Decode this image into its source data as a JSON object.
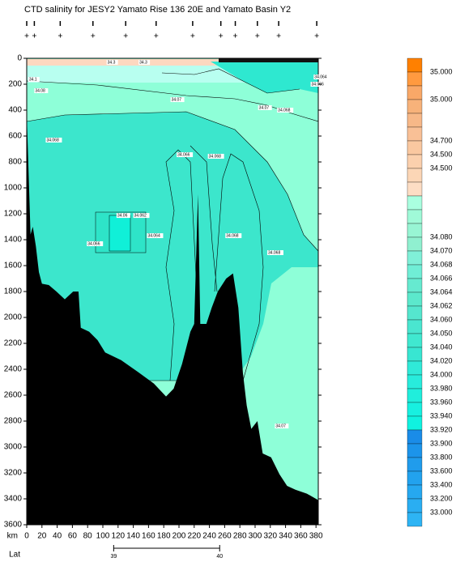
{
  "chart_data": {
    "type": "section",
    "title": "CTD salinity for JESY2 Yamato Rise 136 20E and Yamato Basin Y2",
    "x_label": "km",
    "xlim": [
      0,
      383
    ],
    "xticks": [
      0,
      20,
      40,
      60,
      80,
      100,
      120,
      140,
      160,
      180,
      200,
      220,
      240,
      260,
      280,
      300,
      320,
      340,
      360,
      380
    ],
    "ylim": [
      0,
      3600
    ],
    "y_inverted": true,
    "yticks": [
      0,
      200,
      400,
      600,
      800,
      1000,
      1200,
      1400,
      1600,
      1800,
      2000,
      2200,
      2400,
      2600,
      2800,
      3000,
      3200,
      3400,
      3600
    ],
    "lat_label": "Lat",
    "lat_lim": [
      38.18,
      40.93
    ],
    "lat_ticks": [
      39,
      40
    ],
    "stations_km": [
      0,
      10,
      44,
      87,
      130,
      170,
      218,
      255,
      274,
      303,
      331,
      381
    ],
    "bathymetry": {
      "x": [
        0,
        2,
        5,
        8,
        12,
        16,
        20,
        29,
        39,
        50,
        61,
        68,
        71,
        82,
        93,
        103,
        124,
        146,
        167,
        183,
        193,
        204,
        215,
        220,
        225,
        228,
        236,
        243,
        251,
        262,
        271,
        278,
        284,
        289,
        295,
        303,
        310,
        321,
        332,
        342,
        353,
        368,
        383
      ],
      "depth": [
        425,
        800,
        1360,
        1300,
        1450,
        1650,
        1740,
        1750,
        1800,
        1860,
        1800,
        1800,
        2080,
        2110,
        2175,
        2270,
        2330,
        2420,
        2510,
        2610,
        2550,
        2360,
        2110,
        2050,
        1050,
        2050,
        2050,
        1925,
        1800,
        1700,
        1660,
        1925,
        2430,
        2680,
        2860,
        2800,
        3050,
        3080,
        3210,
        3300,
        3330,
        3360,
        3410
      ],
      "color": "#000000"
    },
    "annotations": [
      {
        "text": "34.3",
        "x": 106,
        "y": 31
      },
      {
        "text": "34.3",
        "x": 148,
        "y": 31
      },
      {
        "text": "34.1",
        "x": 3,
        "y": 163
      },
      {
        "text": "34.08",
        "x": 11,
        "y": 250
      },
      {
        "text": "34.064",
        "x": 378,
        "y": 144
      },
      {
        "text": "34.066",
        "x": 374,
        "y": 200
      },
      {
        "text": "34.07",
        "x": 190,
        "y": 319
      },
      {
        "text": "34.07",
        "x": 305,
        "y": 381
      },
      {
        "text": "34.068",
        "x": 330,
        "y": 400
      },
      {
        "text": "34.068",
        "x": 26,
        "y": 631
      },
      {
        "text": "34.066",
        "x": 198,
        "y": 744
      },
      {
        "text": "34.068",
        "x": 239,
        "y": 756
      },
      {
        "text": "34.06",
        "x": 119,
        "y": 1213
      },
      {
        "text": "34.062",
        "x": 141,
        "y": 1213
      },
      {
        "text": "34.064",
        "x": 159,
        "y": 1369
      },
      {
        "text": "34.066",
        "x": 80,
        "y": 1431
      },
      {
        "text": "34.068",
        "x": 262,
        "y": 1369
      },
      {
        "text": "34.068",
        "x": 317,
        "y": 1500
      },
      {
        "text": "34.07",
        "x": 327,
        "y": 2838
      }
    ],
    "colorbar": {
      "colors": [
        "#ff8000",
        "#ff9a40",
        "#f9a868",
        "#f7b27a",
        "#f7b888",
        "#f9c096",
        "#fac8a0",
        "#fbd0ad",
        "#fcd6b6",
        "#fdddc4",
        "#aaffe0",
        "#a0fad8",
        "#98f5d4",
        "#90f0d0",
        "#80f0d8",
        "#70eed6",
        "#66ead0",
        "#5ce8cc",
        "#55e6ce",
        "#4ae6d0",
        "#40e8d0",
        "#38e6d2",
        "#30ead8",
        "#28ecdc",
        "#20eedc",
        "#18f0e0",
        "#10f2e0",
        "#1a8ce8",
        "#1c94ea",
        "#209cec",
        "#22a2ee",
        "#26a8f0",
        "#2aaef2",
        "#2eb4f4"
      ],
      "labels": [
        null,
        "35.000",
        null,
        "35.000",
        null,
        null,
        "34.700",
        "34.500",
        "34.500",
        null,
        null,
        null,
        null,
        "34.080",
        "34.070",
        "34.068",
        "34.066",
        "34.064",
        "34.062",
        "34.060",
        "34.050",
        "34.040",
        "34.020",
        "34.000",
        "33.980",
        "33.960",
        "33.940",
        "33.920",
        "33.900",
        "33.800",
        "33.600",
        "33.400",
        "33.200",
        "33.000",
        null
      ]
    }
  }
}
